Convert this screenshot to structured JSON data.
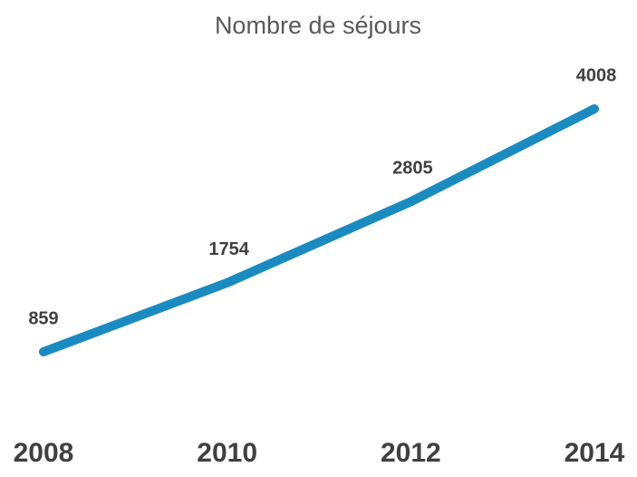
{
  "chart_data": {
    "type": "line",
    "title": "Nombre de séjours",
    "categories": [
      "2008",
      "2010",
      "2012",
      "2014"
    ],
    "values": [
      859,
      1754,
      2805,
      4008
    ],
    "color": "#1a8bc0"
  }
}
